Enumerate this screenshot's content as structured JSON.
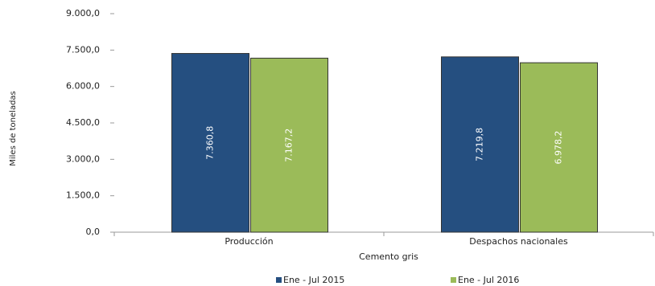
{
  "chart_data": {
    "type": "bar",
    "x_label": "Cemento gris",
    "y_label": "Miles de toneladas",
    "categories": [
      "Producción",
      "Despachos nacionales"
    ],
    "series": [
      {
        "name": "Ene - Jul 2015",
        "color": "#254f80",
        "values": [
          7360.8,
          7219.8
        ],
        "value_labels": [
          "7.360,8",
          "7.219,8"
        ]
      },
      {
        "name": "Ene - Jul 2016",
        "color": "#9bbb59",
        "values": [
          7167.2,
          6978.2
        ],
        "value_labels": [
          "7.167,2",
          "6.978,2"
        ]
      }
    ],
    "ylim": [
      0,
      9000
    ],
    "yticks": [
      {
        "value": 0,
        "label": "0,0"
      },
      {
        "value": 1500,
        "label": "1.500,0"
      },
      {
        "value": 3000,
        "label": "3.000,0"
      },
      {
        "value": 4500,
        "label": "4.500,0"
      },
      {
        "value": 6000,
        "label": "6.000,0"
      },
      {
        "value": 7500,
        "label": "7.500,0"
      },
      {
        "value": 9000,
        "label": "9.000,0"
      }
    ],
    "grid": false,
    "legend": "bottom"
  }
}
